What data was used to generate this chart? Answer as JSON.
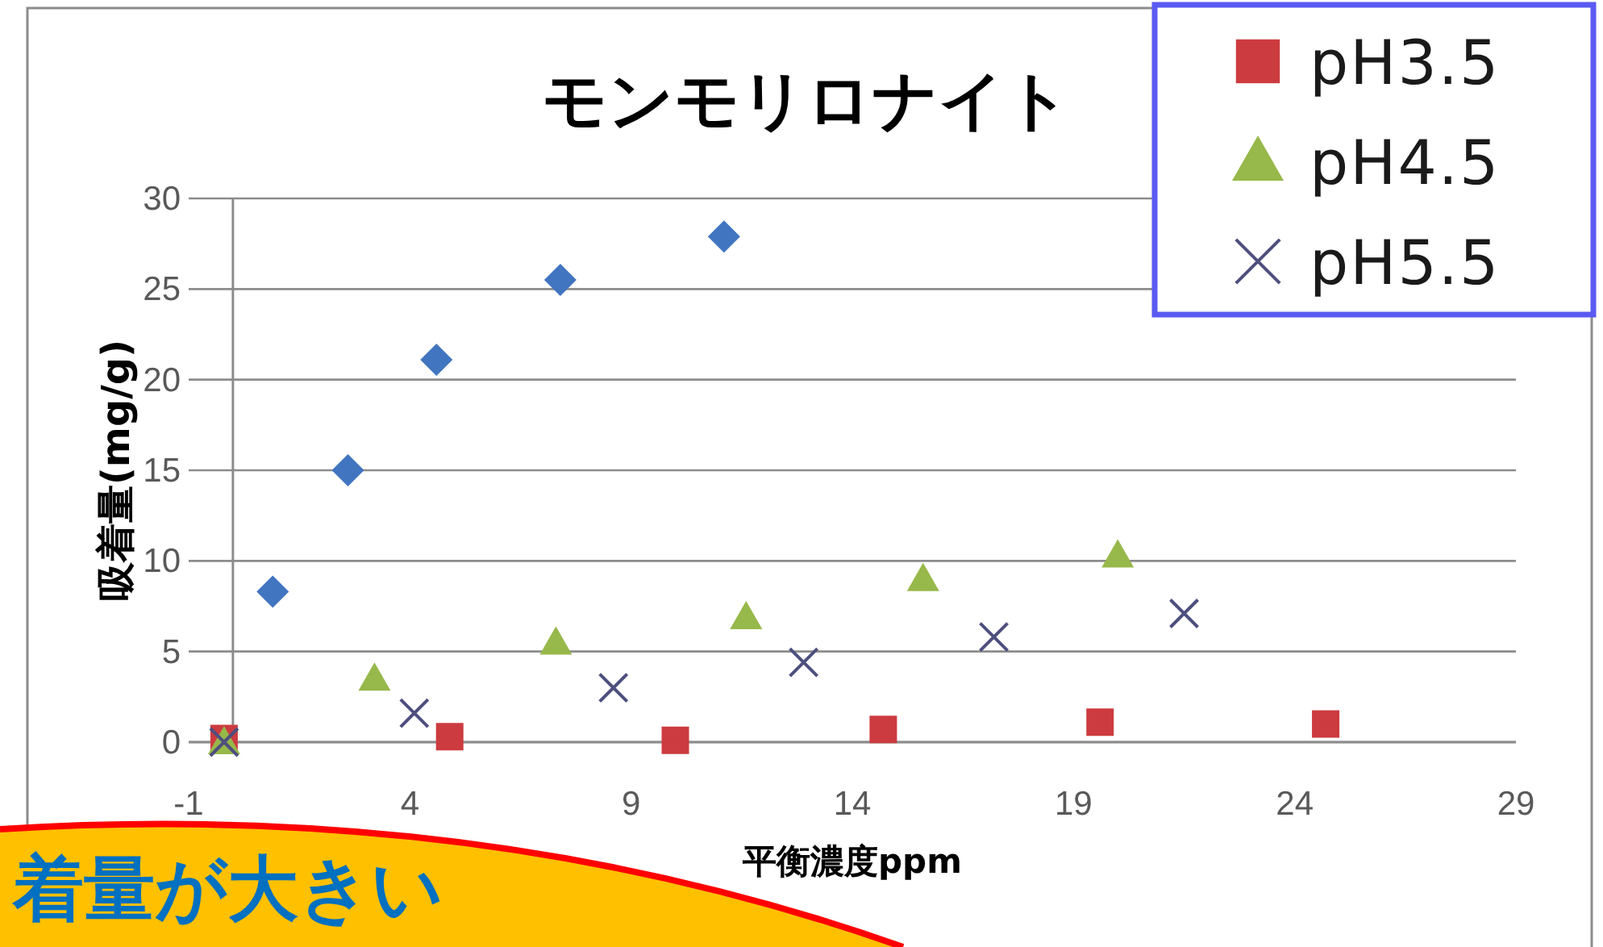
{
  "chart_data": {
    "type": "scatter",
    "title": "モンモリロナイト",
    "xlabel": "平衡濃度ppm",
    "ylabel": "吸着量(mg/g)",
    "xlim": [
      -1,
      29
    ],
    "xticks": [
      -1,
      4,
      9,
      14,
      19,
      24,
      29
    ],
    "ylim": [
      0,
      30
    ],
    "yticks": [
      0,
      5,
      10,
      15,
      20,
      25,
      30
    ],
    "grid": "y",
    "legend": "top right",
    "series": [
      {
        "color": "#4175c0",
        "marker": "diamond",
        "x": [
          0.9,
          2.6,
          4.6,
          7.4,
          11.1
        ],
        "values": [
          8.3,
          15.0,
          21.1,
          25.5,
          27.9
        ]
      },
      {
        "name": "pH3.5",
        "color": "#cc3b3f",
        "marker": "square",
        "x": [
          -0.2,
          4.9,
          10.0,
          14.7,
          19.6,
          24.7
        ],
        "values": [
          0.2,
          0.3,
          0.1,
          0.7,
          1.1,
          1.0
        ]
      },
      {
        "name": "pH4.5",
        "color": "#97b84a",
        "marker": "triangle",
        "x": [
          -0.2,
          3.2,
          7.3,
          11.6,
          15.6,
          20.0
        ],
        "values": [
          0,
          3.5,
          5.5,
          6.9,
          9.0,
          10.3
        ]
      },
      {
        "name": "pH5.5",
        "color": "#4e4f7e",
        "marker": "cross",
        "x": [
          -0.2,
          4.1,
          8.6,
          12.9,
          17.2,
          21.5
        ],
        "values": [
          0,
          1.6,
          3.0,
          4.4,
          5.8,
          7.1
        ]
      }
    ],
    "annotations": [
      "着量が大きい"
    ]
  }
}
